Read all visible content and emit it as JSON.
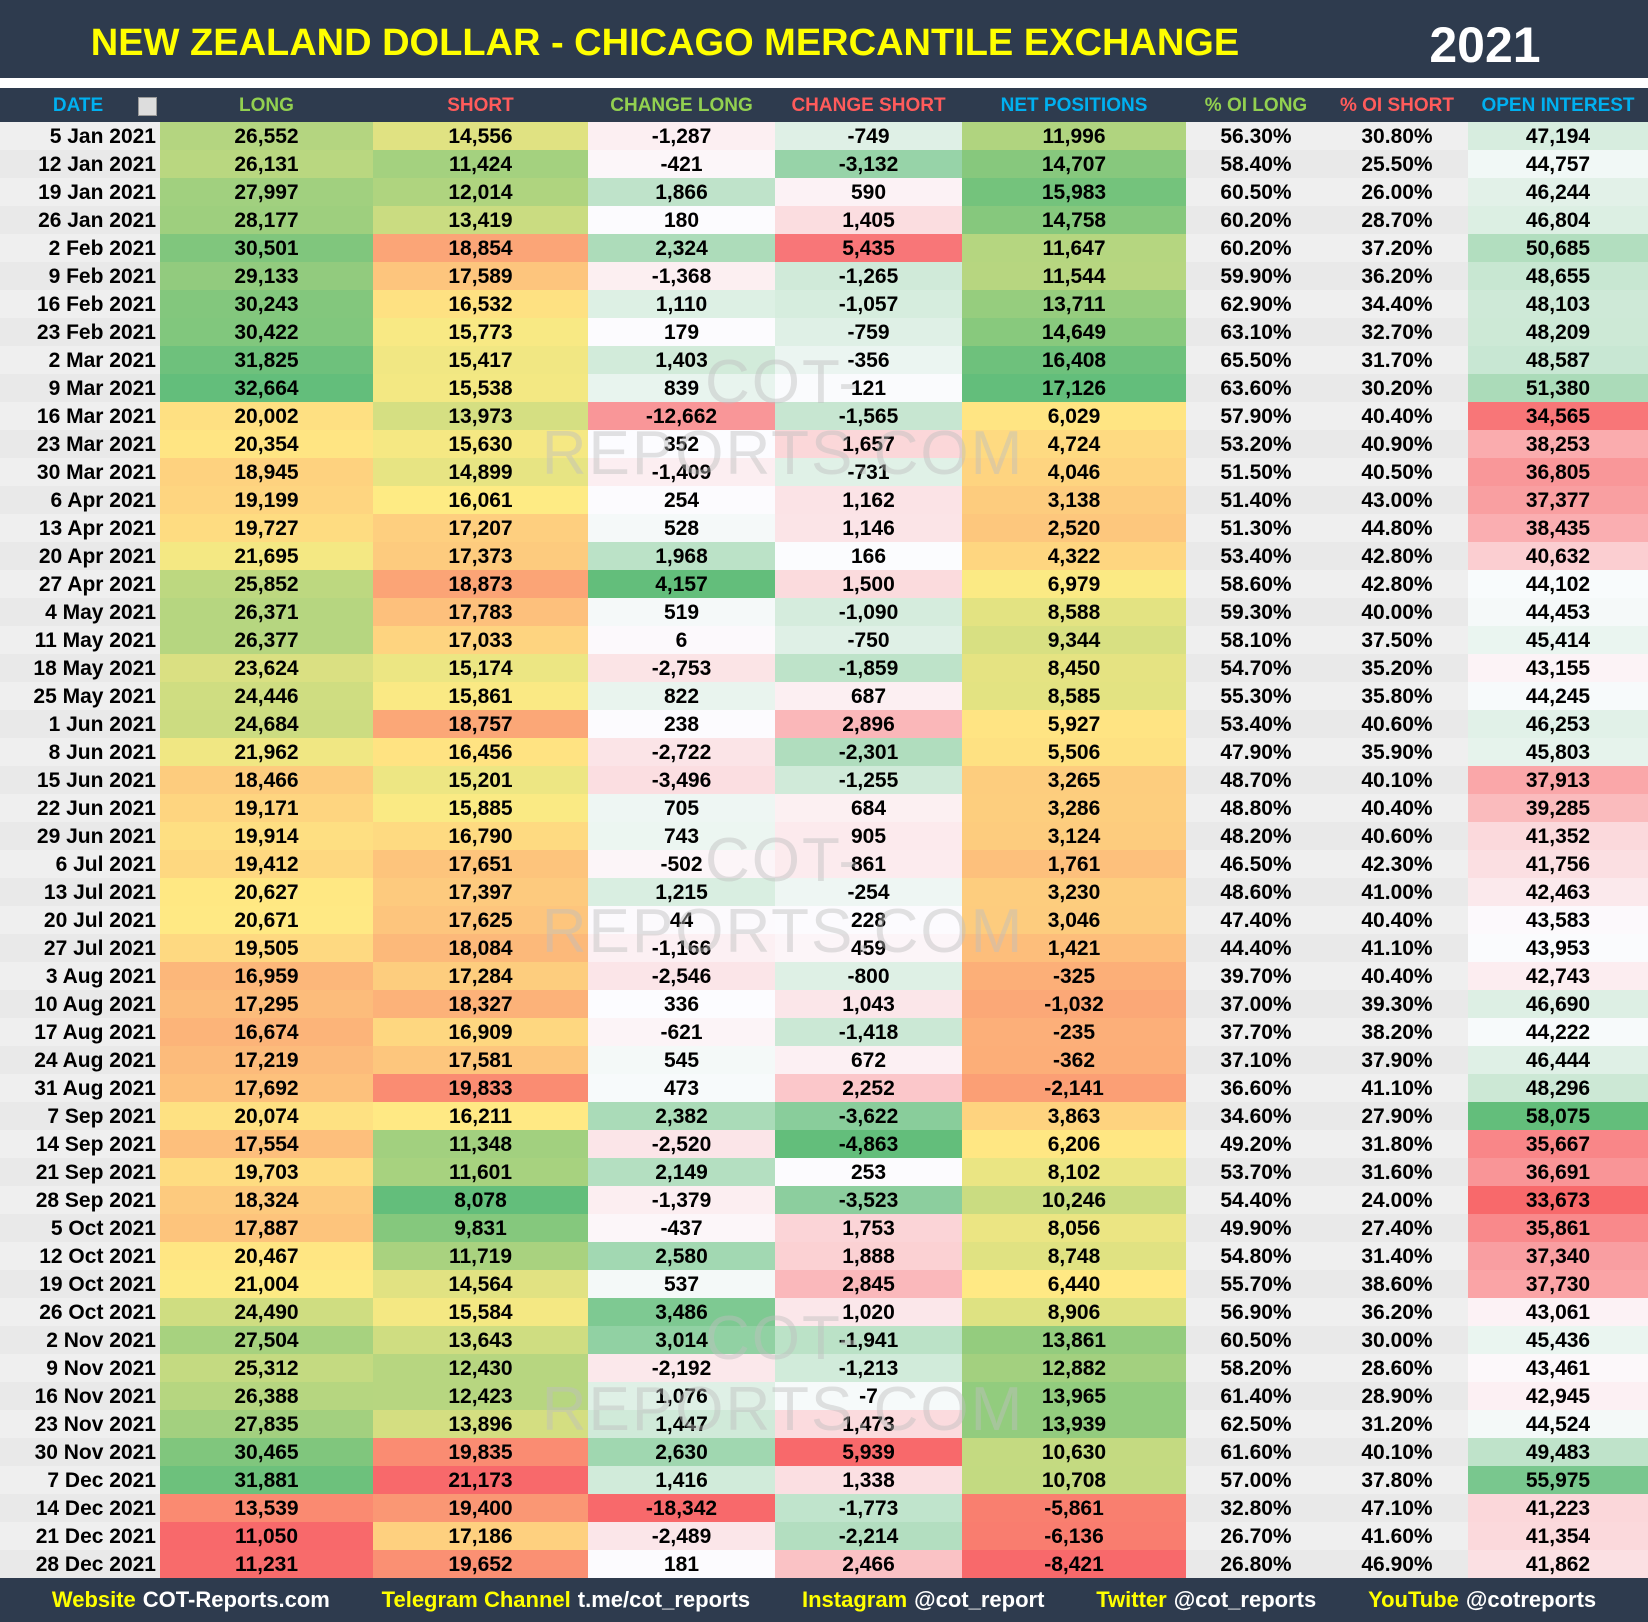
{
  "header": {
    "title": "NEW ZEALAND DOLLAR - CHICAGO MERCANTILE EXCHANGE",
    "year": "2021"
  },
  "table": {
    "columns": [
      "DATE",
      "LONG",
      "SHORT",
      "CHANGE LONG",
      "CHANGE SHORT",
      "NET POSITIONS",
      "% OI LONG",
      "% OI SHORT",
      "OPEN INTEREST"
    ],
    "rows": [
      [
        "5 Jan 2021",
        "26,552",
        "14,556",
        "-1,287",
        "-749",
        "11,996",
        "56.30%",
        "30.80%",
        "47,194"
      ],
      [
        "12 Jan 2021",
        "26,131",
        "11,424",
        "-421",
        "-3,132",
        "14,707",
        "58.40%",
        "25.50%",
        "44,757"
      ],
      [
        "19 Jan 2021",
        "27,997",
        "12,014",
        "1,866",
        "590",
        "15,983",
        "60.50%",
        "26.00%",
        "46,244"
      ],
      [
        "26 Jan 2021",
        "28,177",
        "13,419",
        "180",
        "1,405",
        "14,758",
        "60.20%",
        "28.70%",
        "46,804"
      ],
      [
        "2 Feb 2021",
        "30,501",
        "18,854",
        "2,324",
        "5,435",
        "11,647",
        "60.20%",
        "37.20%",
        "50,685"
      ],
      [
        "9 Feb 2021",
        "29,133",
        "17,589",
        "-1,368",
        "-1,265",
        "11,544",
        "59.90%",
        "36.20%",
        "48,655"
      ],
      [
        "16 Feb 2021",
        "30,243",
        "16,532",
        "1,110",
        "-1,057",
        "13,711",
        "62.90%",
        "34.40%",
        "48,103"
      ],
      [
        "23 Feb 2021",
        "30,422",
        "15,773",
        "179",
        "-759",
        "14,649",
        "63.10%",
        "32.70%",
        "48,209"
      ],
      [
        "2 Mar 2021",
        "31,825",
        "15,417",
        "1,403",
        "-356",
        "16,408",
        "65.50%",
        "31.70%",
        "48,587"
      ],
      [
        "9 Mar 2021",
        "32,664",
        "15,538",
        "839",
        "121",
        "17,126",
        "63.60%",
        "30.20%",
        "51,380"
      ],
      [
        "16 Mar 2021",
        "20,002",
        "13,973",
        "-12,662",
        "-1,565",
        "6,029",
        "57.90%",
        "40.40%",
        "34,565"
      ],
      [
        "23 Mar 2021",
        "20,354",
        "15,630",
        "352",
        "1,657",
        "4,724",
        "53.20%",
        "40.90%",
        "38,253"
      ],
      [
        "30 Mar 2021",
        "18,945",
        "14,899",
        "-1,409",
        "-731",
        "4,046",
        "51.50%",
        "40.50%",
        "36,805"
      ],
      [
        "6 Apr 2021",
        "19,199",
        "16,061",
        "254",
        "1,162",
        "3,138",
        "51.40%",
        "43.00%",
        "37,377"
      ],
      [
        "13 Apr 2021",
        "19,727",
        "17,207",
        "528",
        "1,146",
        "2,520",
        "51.30%",
        "44.80%",
        "38,435"
      ],
      [
        "20 Apr 2021",
        "21,695",
        "17,373",
        "1,968",
        "166",
        "4,322",
        "53.40%",
        "42.80%",
        "40,632"
      ],
      [
        "27 Apr 2021",
        "25,852",
        "18,873",
        "4,157",
        "1,500",
        "6,979",
        "58.60%",
        "42.80%",
        "44,102"
      ],
      [
        "4 May 2021",
        "26,371",
        "17,783",
        "519",
        "-1,090",
        "8,588",
        "59.30%",
        "40.00%",
        "44,453"
      ],
      [
        "11 May 2021",
        "26,377",
        "17,033",
        "6",
        "-750",
        "9,344",
        "58.10%",
        "37.50%",
        "45,414"
      ],
      [
        "18 May 2021",
        "23,624",
        "15,174",
        "-2,753",
        "-1,859",
        "8,450",
        "54.70%",
        "35.20%",
        "43,155"
      ],
      [
        "25 May 2021",
        "24,446",
        "15,861",
        "822",
        "687",
        "8,585",
        "55.30%",
        "35.80%",
        "44,245"
      ],
      [
        "1 Jun 2021",
        "24,684",
        "18,757",
        "238",
        "2,896",
        "5,927",
        "53.40%",
        "40.60%",
        "46,253"
      ],
      [
        "8 Jun 2021",
        "21,962",
        "16,456",
        "-2,722",
        "-2,301",
        "5,506",
        "47.90%",
        "35.90%",
        "45,803"
      ],
      [
        "15 Jun 2021",
        "18,466",
        "15,201",
        "-3,496",
        "-1,255",
        "3,265",
        "48.70%",
        "40.10%",
        "37,913"
      ],
      [
        "22 Jun 2021",
        "19,171",
        "15,885",
        "705",
        "684",
        "3,286",
        "48.80%",
        "40.40%",
        "39,285"
      ],
      [
        "29 Jun 2021",
        "19,914",
        "16,790",
        "743",
        "905",
        "3,124",
        "48.20%",
        "40.60%",
        "41,352"
      ],
      [
        "6 Jul 2021",
        "19,412",
        "17,651",
        "-502",
        "861",
        "1,761",
        "46.50%",
        "42.30%",
        "41,756"
      ],
      [
        "13 Jul 2021",
        "20,627",
        "17,397",
        "1,215",
        "-254",
        "3,230",
        "48.60%",
        "41.00%",
        "42,463"
      ],
      [
        "20 Jul 2021",
        "20,671",
        "17,625",
        "44",
        "228",
        "3,046",
        "47.40%",
        "40.40%",
        "43,583"
      ],
      [
        "27 Jul 2021",
        "19,505",
        "18,084",
        "-1,166",
        "459",
        "1,421",
        "44.40%",
        "41.10%",
        "43,953"
      ],
      [
        "3 Aug 2021",
        "16,959",
        "17,284",
        "-2,546",
        "-800",
        "-325",
        "39.70%",
        "40.40%",
        "42,743"
      ],
      [
        "10 Aug 2021",
        "17,295",
        "18,327",
        "336",
        "1,043",
        "-1,032",
        "37.00%",
        "39.30%",
        "46,690"
      ],
      [
        "17 Aug 2021",
        "16,674",
        "16,909",
        "-621",
        "-1,418",
        "-235",
        "37.70%",
        "38.20%",
        "44,222"
      ],
      [
        "24 Aug 2021",
        "17,219",
        "17,581",
        "545",
        "672",
        "-362",
        "37.10%",
        "37.90%",
        "46,444"
      ],
      [
        "31 Aug 2021",
        "17,692",
        "19,833",
        "473",
        "2,252",
        "-2,141",
        "36.60%",
        "41.10%",
        "48,296"
      ],
      [
        "7 Sep 2021",
        "20,074",
        "16,211",
        "2,382",
        "-3,622",
        "3,863",
        "34.60%",
        "27.90%",
        "58,075"
      ],
      [
        "14 Sep 2021",
        "17,554",
        "11,348",
        "-2,520",
        "-4,863",
        "6,206",
        "49.20%",
        "31.80%",
        "35,667"
      ],
      [
        "21 Sep 2021",
        "19,703",
        "11,601",
        "2,149",
        "253",
        "8,102",
        "53.70%",
        "31.60%",
        "36,691"
      ],
      [
        "28 Sep 2021",
        "18,324",
        "8,078",
        "-1,379",
        "-3,523",
        "10,246",
        "54.40%",
        "24.00%",
        "33,673"
      ],
      [
        "5 Oct 2021",
        "17,887",
        "9,831",
        "-437",
        "1,753",
        "8,056",
        "49.90%",
        "27.40%",
        "35,861"
      ],
      [
        "12 Oct 2021",
        "20,467",
        "11,719",
        "2,580",
        "1,888",
        "8,748",
        "54.80%",
        "31.40%",
        "37,340"
      ],
      [
        "19 Oct 2021",
        "21,004",
        "14,564",
        "537",
        "2,845",
        "6,440",
        "55.70%",
        "38.60%",
        "37,730"
      ],
      [
        "26 Oct 2021",
        "24,490",
        "15,584",
        "3,486",
        "1,020",
        "8,906",
        "56.90%",
        "36.20%",
        "43,061"
      ],
      [
        "2 Nov 2021",
        "27,504",
        "13,643",
        "3,014",
        "-1,941",
        "13,861",
        "60.50%",
        "30.00%",
        "45,436"
      ],
      [
        "9 Nov 2021",
        "25,312",
        "12,430",
        "-2,192",
        "-1,213",
        "12,882",
        "58.20%",
        "28.60%",
        "43,461"
      ],
      [
        "16 Nov 2021",
        "26,388",
        "12,423",
        "1,076",
        "-7",
        "13,965",
        "61.40%",
        "28.90%",
        "42,945"
      ],
      [
        "23 Nov 2021",
        "27,835",
        "13,896",
        "1,447",
        "1,473",
        "13,939",
        "62.50%",
        "31.20%",
        "44,524"
      ],
      [
        "30 Nov 2021",
        "30,465",
        "19,835",
        "2,630",
        "5,939",
        "10,630",
        "61.60%",
        "40.10%",
        "49,483"
      ],
      [
        "7 Dec 2021",
        "31,881",
        "21,173",
        "1,416",
        "1,338",
        "10,708",
        "57.00%",
        "37.80%",
        "55,975"
      ],
      [
        "14 Dec 2021",
        "13,539",
        "19,400",
        "-18,342",
        "-1,773",
        "-5,861",
        "32.80%",
        "47.10%",
        "41,223"
      ],
      [
        "21 Dec 2021",
        "11,050",
        "17,186",
        "-2,489",
        "-2,214",
        "-6,136",
        "26.70%",
        "41.60%",
        "41,354"
      ],
      [
        "28 Dec 2021",
        "11,231",
        "19,652",
        "181",
        "2,466",
        "-8,421",
        "26.80%",
        "46.90%",
        "41,862"
      ]
    ]
  },
  "watermark": "COT-REPORTS.COM",
  "footer": [
    {
      "label": "Website",
      "value": "COT-Reports.com"
    },
    {
      "label": "Telegram Channel",
      "value": "t.me/cot_reports"
    },
    {
      "label": "Instagram",
      "value": "@cot_report"
    },
    {
      "label": "Twitter",
      "value": "@cot_reports"
    },
    {
      "label": "YouTube",
      "value": "@cotreports"
    }
  ]
}
